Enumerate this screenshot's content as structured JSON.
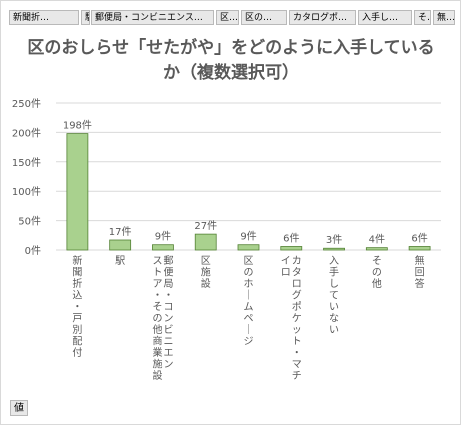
{
  "field_buttons": [
    {
      "label": "新聞折…",
      "name": "field-button-shimbun"
    },
    {
      "label": "駅",
      "name": "field-button-eki"
    },
    {
      "label": "郵便局・コンビニエンスト…",
      "name": "field-button-yubinkyoku"
    },
    {
      "label": "区…",
      "name": "field-button-kushisetsu"
    },
    {
      "label": "区の…",
      "name": "field-button-homepage"
    },
    {
      "label": "カタログポ…",
      "name": "field-button-catalog"
    },
    {
      "label": "入手し…",
      "name": "field-button-nyushu"
    },
    {
      "label": "そ…",
      "name": "field-button-sonota"
    },
    {
      "label": "無…",
      "name": "field-button-mukaito"
    }
  ],
  "values_button": "値",
  "chart_data": {
    "type": "bar",
    "title": "区のおしらせ「せたがや」をどのように入手しているか（複数選択可）",
    "categories": [
      "新聞折込・戸別配付",
      "駅",
      "郵便局・コンビニエンスストア・その他商業施設",
      "区施設",
      "区のホームページ",
      "カタログポケット・マチイロ",
      "入手していない",
      "その他",
      "無回答"
    ],
    "category_label_lines": [
      [
        "新聞折込・戸別配付"
      ],
      [
        "駅"
      ],
      [
        "郵便局・コンビニエン",
        "ストア・その他商業施設"
      ],
      [
        "区施設"
      ],
      [
        "区のホームページ"
      ],
      [
        "カタログポケット・マチ",
        "イロ"
      ],
      [
        "入手していない"
      ],
      [
        "その他"
      ],
      [
        "無回答"
      ]
    ],
    "values": [
      198,
      17,
      9,
      27,
      9,
      6,
      3,
      4,
      6
    ],
    "data_labels": [
      "198件",
      "17件",
      "9件",
      "27件",
      "9件",
      "6件",
      "3件",
      "4件",
      "6件"
    ],
    "yticks": [
      "0件",
      "50件",
      "100件",
      "150件",
      "200件",
      "250件"
    ],
    "ylim": [
      0,
      250
    ],
    "grid": true,
    "colors": {
      "bar_fill": "#a9d18e",
      "bar_stroke": "#548235",
      "grid": "#d9d9d9",
      "text": "#595959"
    }
  }
}
